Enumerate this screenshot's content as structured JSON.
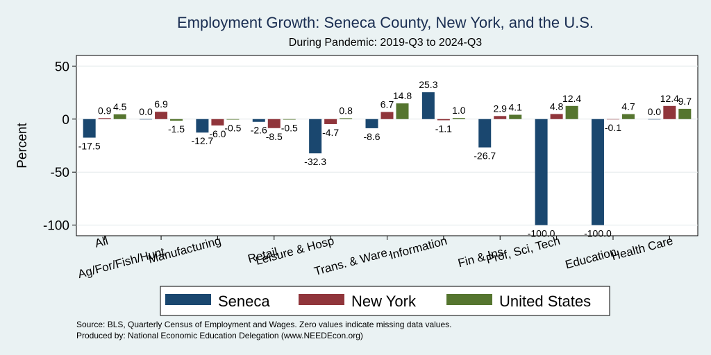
{
  "chart_data": {
    "type": "bar",
    "title": "Employment Growth: Seneca County, New York, and the U.S.",
    "subtitle": "During Pandemic: 2019-Q3 to 2024-Q3",
    "ylabel": "Percent",
    "xlabel": "",
    "ylim": [
      -110,
      60
    ],
    "yticks": [
      50,
      0,
      -50,
      -100
    ],
    "ytick_labels": [
      "50",
      "0",
      "-50",
      "-100"
    ],
    "grid": true,
    "legend_position": "bottom",
    "categories": [
      "All",
      "Ag/For/Fish/Hunt",
      "Manufacturing",
      "Retail",
      "Leisure & Hosp",
      "Trans. & Ware.",
      "Information",
      "Fin & Ins",
      "Prof, Sci, Tech",
      "Education",
      "Health Care"
    ],
    "series": [
      {
        "name": "Seneca",
        "color": "#1a476f",
        "values": [
          -17.5,
          0.0,
          -12.7,
          -2.6,
          -32.3,
          -8.6,
          25.3,
          -26.7,
          -100.0,
          -100.0,
          0.0
        ],
        "labels": [
          "-17.5",
          "0.0",
          "-12.7",
          "-2.6",
          "-32.3",
          "-8.6",
          "25.3",
          "-26.7",
          "-100.0",
          "-100.0",
          "0.0"
        ]
      },
      {
        "name": "New York",
        "color": "#90353b",
        "values": [
          0.9,
          6.9,
          -6.0,
          -8.5,
          -4.7,
          6.7,
          -1.1,
          2.9,
          4.8,
          -0.1,
          12.4
        ],
        "labels": [
          "0.9",
          "6.9",
          "-6.0",
          "-8.5",
          "-4.7",
          "6.7",
          "-1.1",
          "2.9",
          "4.8",
          "-0.1",
          "12.4"
        ]
      },
      {
        "name": "United States",
        "color": "#55752f",
        "values": [
          4.5,
          -1.5,
          -0.5,
          -0.5,
          0.8,
          14.8,
          1.0,
          4.1,
          12.4,
          4.7,
          9.7
        ],
        "labels": [
          "4.5",
          "-1.5",
          "-0.5",
          "-0.5",
          "0.8",
          "14.8",
          "1.0",
          "4.1",
          "12.4",
          "4.7",
          "9.7"
        ]
      }
    ]
  },
  "notes": {
    "source": "Source: BLS, Quarterly Census of Employment and Wages. Zero values indicate missing data values.",
    "producer": "Produced by: National Economic Education Delegation (www.NEEDEcon.org)"
  }
}
